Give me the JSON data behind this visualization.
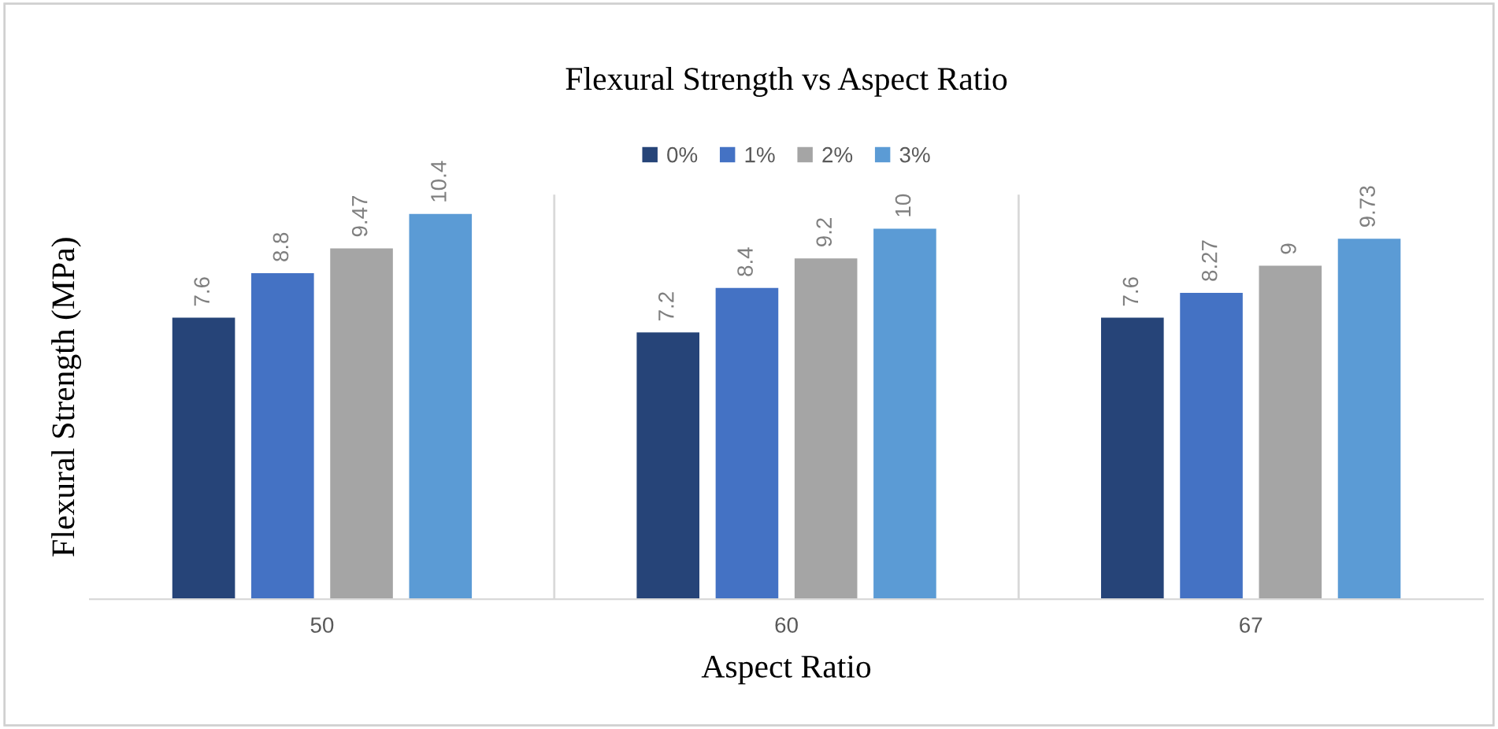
{
  "chart_data": {
    "type": "bar",
    "title": "Flexural Strength vs Aspect Ratio",
    "xlabel": "Aspect Ratio",
    "ylabel": "Flexural Strength (MPa)",
    "categories": [
      "50",
      "60",
      "67"
    ],
    "series": [
      {
        "name": "0%",
        "color": "#264478",
        "values": [
          7.6,
          7.2,
          7.6
        ]
      },
      {
        "name": "1%",
        "color": "#4472c4",
        "values": [
          8.8,
          8.4,
          8.27
        ]
      },
      {
        "name": "2%",
        "color": "#a5a5a5",
        "values": [
          9.47,
          9.2,
          9
        ]
      },
      {
        "name": "3%",
        "color": "#5b9bd5",
        "values": [
          10.4,
          10,
          9.73
        ]
      }
    ],
    "data_labels": true,
    "legend": "top",
    "grid": false
  }
}
